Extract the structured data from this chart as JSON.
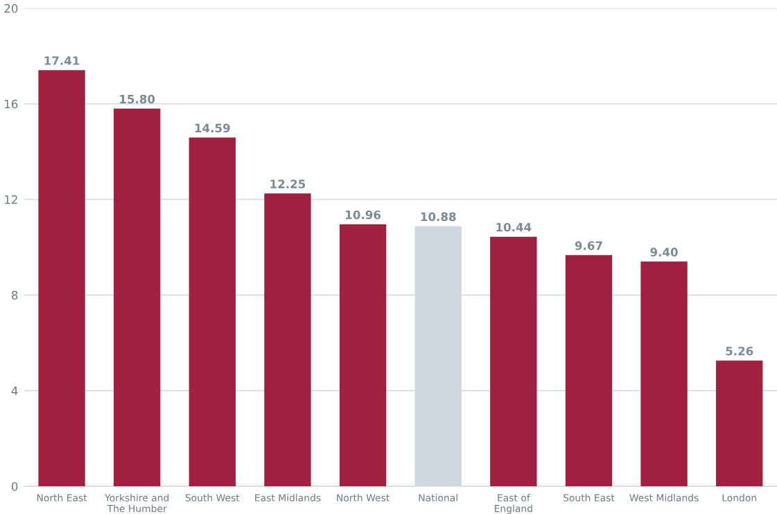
{
  "chart_data": {
    "type": "bar",
    "categories": [
      "North East",
      "Yorkshire and The Humber",
      "South West",
      "East Midlands",
      "North West",
      "National",
      "East of England",
      "South East",
      "West Midlands",
      "London"
    ],
    "values": [
      17.41,
      15.8,
      14.59,
      12.25,
      10.96,
      10.88,
      10.44,
      9.67,
      9.4,
      5.26
    ],
    "value_labels": [
      "17.41",
      "15.80",
      "14.59",
      "12.25",
      "10.96",
      "10.88",
      "10.44",
      "9.67",
      "9.40",
      "5.26"
    ],
    "colors": [
      "#a0213f",
      "#a0213f",
      "#a0213f",
      "#a0213f",
      "#a0213f",
      "#cfd9e0",
      "#a0213f",
      "#a0213f",
      "#a0213f",
      "#a0213f"
    ],
    "ylim": [
      0,
      20
    ],
    "yticks": [
      0,
      4,
      8,
      12,
      16,
      20
    ],
    "grid": "y",
    "legend": false
  }
}
